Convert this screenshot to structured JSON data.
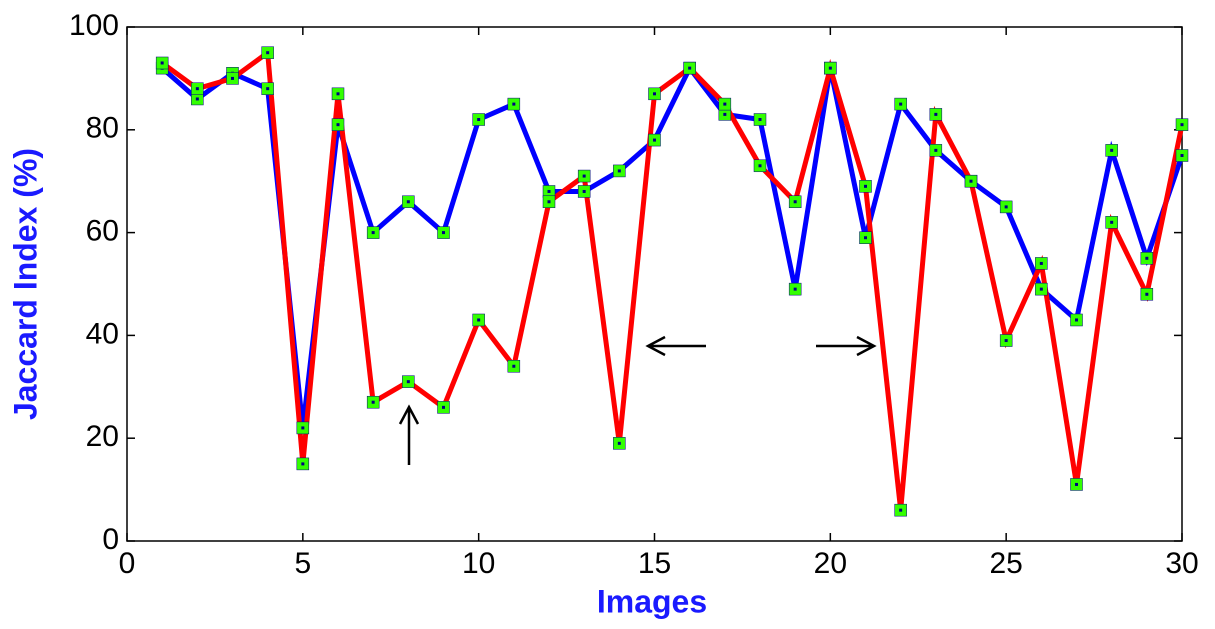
{
  "chart_data": {
    "type": "line",
    "x_label": "Images",
    "y_label": "Jaccard Index (%)",
    "x": [
      1,
      2,
      3,
      4,
      5,
      6,
      7,
      8,
      9,
      10,
      11,
      12,
      13,
      14,
      15,
      16,
      17,
      18,
      19,
      20,
      21,
      22,
      23,
      24,
      25,
      26,
      27,
      28,
      29,
      30
    ],
    "series": [
      {
        "color": "#0000ff",
        "values": [
          92,
          86,
          91,
          88,
          22,
          81,
          60,
          66,
          60,
          82,
          85,
          68,
          68,
          72,
          78,
          92,
          83,
          82,
          49,
          92,
          59,
          85,
          76,
          70,
          65,
          49,
          43,
          76,
          55,
          75
        ]
      },
      {
        "color": "#ff0000",
        "values": [
          93,
          88,
          90,
          95,
          15,
          87,
          27,
          31,
          26,
          43,
          34,
          66,
          71,
          19,
          87,
          92,
          85,
          73,
          66,
          92,
          69,
          6,
          83,
          70,
          39,
          54,
          11,
          62,
          48,
          81
        ]
      }
    ],
    "marker_color": "#33ff00",
    "xlim": [
      0,
      30
    ],
    "xticks": [
      0,
      5,
      10,
      15,
      20,
      25,
      30
    ],
    "ylim": [
      0,
      100
    ],
    "yticks": [
      0,
      20,
      40,
      60,
      80,
      100
    ]
  }
}
